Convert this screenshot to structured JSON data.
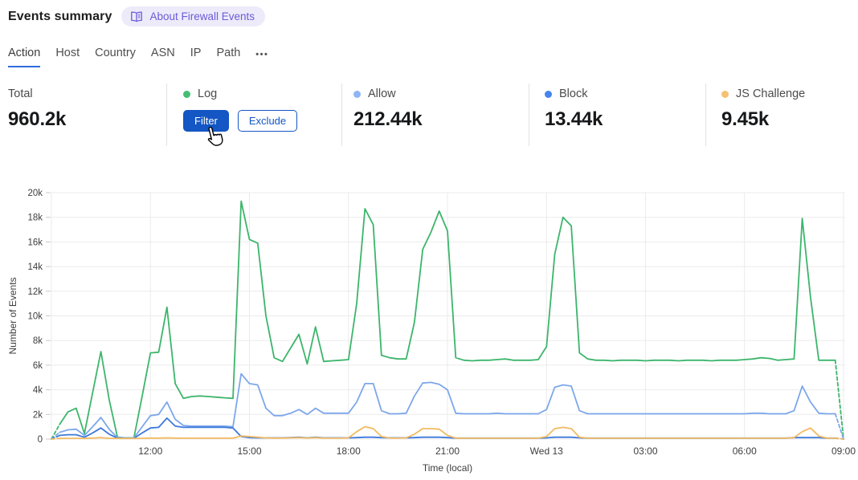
{
  "header": {
    "title": "Events summary",
    "about_badge": "About Firewall Events"
  },
  "tabs": {
    "items": [
      {
        "label": "Action",
        "active": true
      },
      {
        "label": "Host",
        "active": false
      },
      {
        "label": "Country",
        "active": false
      },
      {
        "label": "ASN",
        "active": false
      },
      {
        "label": "IP",
        "active": false
      },
      {
        "label": "Path",
        "active": false
      }
    ],
    "more_label": "•••"
  },
  "stats": {
    "cells": [
      {
        "label": "Total",
        "value": "960.2k",
        "dot_color": null
      },
      {
        "label": "Log",
        "value": null,
        "dot_color": "#45bd74"
      },
      {
        "label": "Allow",
        "value": "212.44k",
        "dot_color": "#8fb6f4"
      },
      {
        "label": "Block",
        "value": "13.44k",
        "dot_color": "#4486eb"
      },
      {
        "label": "JS Challenge",
        "value": "9.45k",
        "dot_color": "#f5c173"
      }
    ],
    "log_actions": {
      "filter": "Filter",
      "exclude": "Exclude"
    }
  },
  "chart_data": {
    "type": "line",
    "title": "Events summary",
    "xlabel": "Time (local)",
    "ylabel": "Number of Events",
    "y_unit": "thousands",
    "ylim": [
      0,
      20
    ],
    "grid": true,
    "x_count": 97,
    "x_interval": "15 minutes, spanning 24h ending Wed 13 09:00",
    "x_ticks": [
      {
        "i": 12,
        "label": "12:00"
      },
      {
        "i": 24,
        "label": "15:00"
      },
      {
        "i": 36,
        "label": "18:00"
      },
      {
        "i": 48,
        "label": "21:00"
      },
      {
        "i": 60,
        "label": "Wed 13"
      },
      {
        "i": 72,
        "label": "03:00"
      },
      {
        "i": 84,
        "label": "06:00"
      },
      {
        "i": 96,
        "label": "09:00"
      }
    ],
    "y_ticks": [
      {
        "v": 0,
        "label": "0"
      },
      {
        "v": 2,
        "label": "2k"
      },
      {
        "v": 4,
        "label": "4k"
      },
      {
        "v": 6,
        "label": "6k"
      },
      {
        "v": 8,
        "label": "8k"
      },
      {
        "v": 10,
        "label": "10k"
      },
      {
        "v": 12,
        "label": "12k"
      },
      {
        "v": 14,
        "label": "14k"
      },
      {
        "v": 16,
        "label": "16k"
      },
      {
        "v": 18,
        "label": "18k"
      },
      {
        "v": 20,
        "label": "20k"
      }
    ],
    "dashed_first_and_last_segment": true,
    "series": [
      {
        "name": "Log",
        "color": "#3cb56b",
        "values": [
          0,
          1.2,
          2.2,
          2.5,
          0.45,
          3.8,
          7.1,
          3.2,
          0.15,
          0.1,
          0.1,
          3.5,
          7.0,
          7.05,
          10.7,
          4.5,
          3.3,
          3.45,
          3.5,
          3.45,
          3.4,
          3.35,
          3.3,
          19.3,
          16.2,
          15.9,
          10.0,
          6.6,
          6.3,
          7.4,
          8.5,
          6.1,
          9.1,
          6.3,
          6.35,
          6.4,
          6.45,
          11.0,
          18.7,
          17.4,
          6.8,
          6.6,
          6.5,
          6.5,
          9.5,
          15.4,
          16.8,
          18.5,
          16.9,
          6.6,
          6.4,
          6.35,
          6.4,
          6.4,
          6.45,
          6.5,
          6.4,
          6.4,
          6.4,
          6.45,
          7.5,
          15.0,
          18.0,
          17.3,
          7.0,
          6.5,
          6.4,
          6.4,
          6.35,
          6.4,
          6.4,
          6.4,
          6.35,
          6.4,
          6.4,
          6.4,
          6.35,
          6.4,
          6.4,
          6.4,
          6.35,
          6.4,
          6.4,
          6.4,
          6.45,
          6.5,
          6.6,
          6.55,
          6.4,
          6.45,
          6.5,
          17.9,
          11.5,
          6.4,
          6.4,
          6.4,
          0
        ]
      },
      {
        "name": "Allow",
        "color": "#7da7eb",
        "values": [
          0,
          0.55,
          0.75,
          0.8,
          0.3,
          1.0,
          1.75,
          0.8,
          0.12,
          0.1,
          0.1,
          1.0,
          1.9,
          2.0,
          3.0,
          1.6,
          1.1,
          1.05,
          1.05,
          1.05,
          1.05,
          1.05,
          1.0,
          5.3,
          4.5,
          4.4,
          2.5,
          1.9,
          1.9,
          2.1,
          2.4,
          2.0,
          2.5,
          2.1,
          2.1,
          2.1,
          2.1,
          3.0,
          4.5,
          4.5,
          2.3,
          2.05,
          2.05,
          2.1,
          3.5,
          4.55,
          4.6,
          4.45,
          4.0,
          2.1,
          2.05,
          2.05,
          2.05,
          2.05,
          2.1,
          2.05,
          2.05,
          2.05,
          2.05,
          2.05,
          2.4,
          4.2,
          4.4,
          4.3,
          2.3,
          2.05,
          2.05,
          2.05,
          2.05,
          2.05,
          2.05,
          2.05,
          2.05,
          2.05,
          2.05,
          2.05,
          2.05,
          2.05,
          2.05,
          2.05,
          2.05,
          2.05,
          2.05,
          2.05,
          2.05,
          2.1,
          2.1,
          2.05,
          2.05,
          2.05,
          2.3,
          4.3,
          3.0,
          2.1,
          2.05,
          2.05,
          0
        ]
      },
      {
        "name": "Block",
        "color": "#3d79dc",
        "values": [
          0,
          0.3,
          0.35,
          0.35,
          0.15,
          0.5,
          0.9,
          0.4,
          0.08,
          0.06,
          0.06,
          0.5,
          0.9,
          0.95,
          1.7,
          1.05,
          0.95,
          0.95,
          0.95,
          0.95,
          0.95,
          0.95,
          0.9,
          0.2,
          0.12,
          0.1,
          0.1,
          0.1,
          0.1,
          0.12,
          0.15,
          0.1,
          0.15,
          0.1,
          0.1,
          0.1,
          0.1,
          0.12,
          0.15,
          0.15,
          0.12,
          0.1,
          0.1,
          0.1,
          0.12,
          0.15,
          0.15,
          0.15,
          0.12,
          0.08,
          0.08,
          0.08,
          0.08,
          0.08,
          0.08,
          0.08,
          0.08,
          0.08,
          0.08,
          0.08,
          0.1,
          0.15,
          0.15,
          0.15,
          0.1,
          0.08,
          0.08,
          0.08,
          0.08,
          0.08,
          0.08,
          0.08,
          0.08,
          0.08,
          0.08,
          0.08,
          0.08,
          0.08,
          0.08,
          0.08,
          0.08,
          0.08,
          0.08,
          0.08,
          0.08,
          0.08,
          0.08,
          0.08,
          0.08,
          0.08,
          0.12,
          0.12,
          0.12,
          0.12,
          0.08,
          0.08,
          0
        ]
      },
      {
        "name": "JS Challenge",
        "color": "#f2ba62",
        "values": [
          0,
          0.05,
          0.06,
          0.06,
          0.05,
          0.08,
          0.12,
          0.06,
          0.05,
          0.05,
          0.05,
          0.06,
          0.08,
          0.08,
          0.1,
          0.08,
          0.07,
          0.07,
          0.07,
          0.07,
          0.07,
          0.07,
          0.07,
          0.25,
          0.2,
          0.15,
          0.1,
          0.08,
          0.08,
          0.1,
          0.12,
          0.08,
          0.12,
          0.08,
          0.07,
          0.07,
          0.1,
          0.6,
          1.0,
          0.85,
          0.2,
          0.08,
          0.07,
          0.1,
          0.4,
          0.85,
          0.85,
          0.8,
          0.3,
          0.08,
          0.07,
          0.07,
          0.07,
          0.07,
          0.07,
          0.07,
          0.07,
          0.07,
          0.07,
          0.07,
          0.2,
          0.85,
          0.95,
          0.85,
          0.15,
          0.07,
          0.07,
          0.07,
          0.07,
          0.07,
          0.07,
          0.07,
          0.07,
          0.07,
          0.07,
          0.07,
          0.07,
          0.07,
          0.07,
          0.07,
          0.07,
          0.07,
          0.07,
          0.07,
          0.07,
          0.07,
          0.07,
          0.07,
          0.07,
          0.07,
          0.12,
          0.6,
          0.9,
          0.25,
          0.07,
          0.07,
          0
        ]
      }
    ],
    "colors": {
      "grid": "#ebebeb",
      "tick": "#c9c9c9",
      "axis_text": "#3d3d3d"
    }
  }
}
